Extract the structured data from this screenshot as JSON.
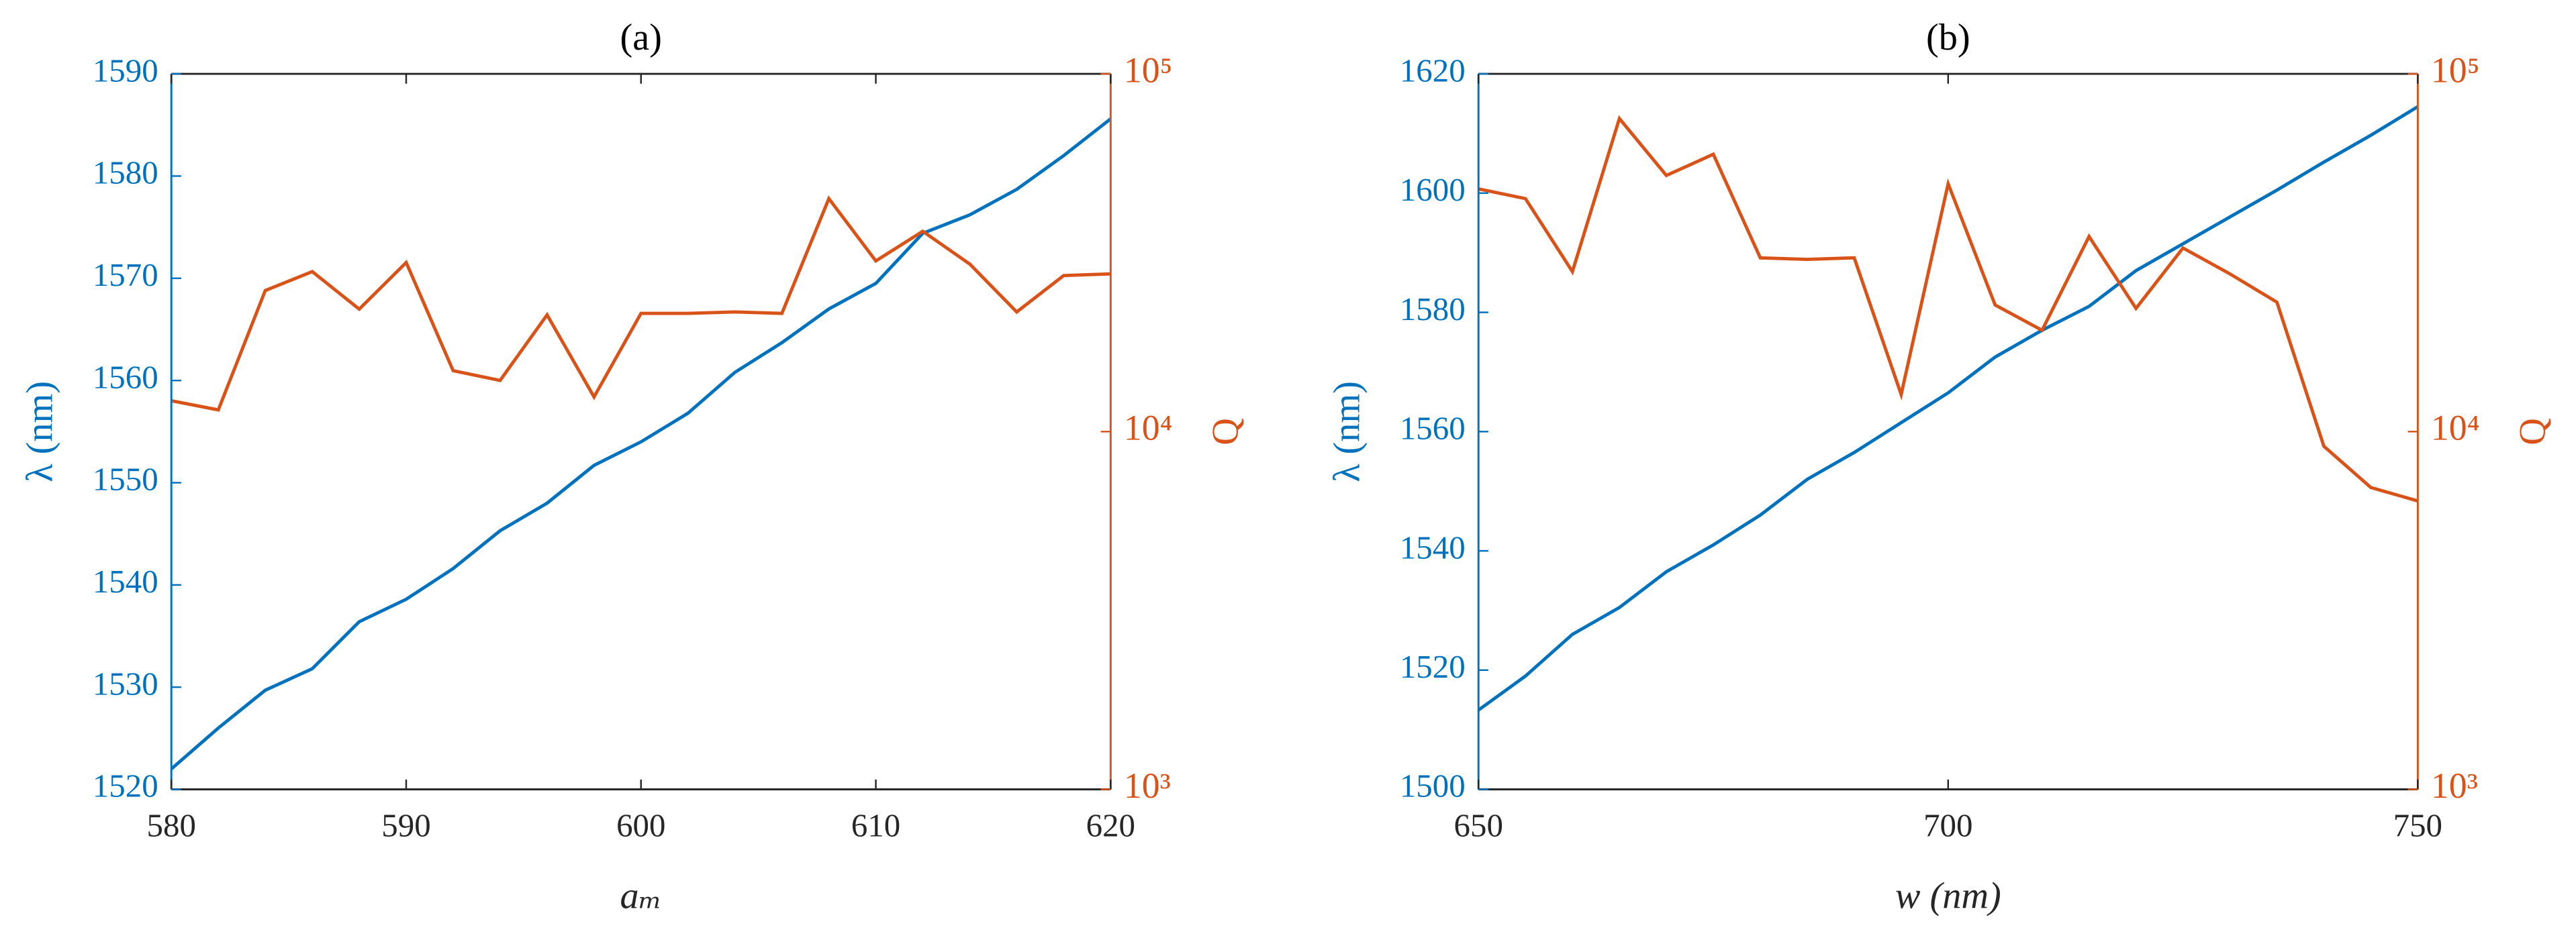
{
  "chart_data": [
    {
      "type": "line",
      "title": "(a)",
      "xlabel": "aₘ",
      "ylabel": "λ (nm)",
      "y2label": "Q",
      "y2scale": "log",
      "x": [
        580,
        582,
        584,
        586,
        588,
        590,
        592,
        594,
        596,
        598,
        600,
        602,
        604,
        606,
        608,
        610,
        612,
        614,
        616,
        618,
        620
      ],
      "series": [
        {
          "color": "#0072bd",
          "values": [
            1522,
            1526,
            1529.7,
            1531.8,
            1536.4,
            1538.6,
            1541.6,
            1545.3,
            1548,
            1551.7,
            1554,
            1556.8,
            1560.8,
            1563.7,
            1567,
            1569.5,
            1574.4,
            1576.2,
            1578.7,
            1582,
            1585.6
          ]
        },
        {
          "color": "#d95319",
          "axis": "y2",
          "values": [
            12200,
            11500,
            24800,
            28000,
            22000,
            29700,
            14800,
            13900,
            21200,
            12500,
            21400,
            21400,
            21600,
            21400,
            44800,
            30000,
            36300,
            29400,
            21600,
            27300,
            27600
          ]
        }
      ],
      "xlim": [
        580,
        620
      ],
      "xticks": [
        580,
        590,
        600,
        610,
        620
      ],
      "ylim": [
        1520,
        1590
      ],
      "yticks": [
        1520,
        1530,
        1540,
        1550,
        1560,
        1570,
        1580,
        1590
      ],
      "y2lim": [
        1000,
        100000
      ],
      "y2ticks": [
        {
          "value": 1000,
          "label": "10³"
        },
        {
          "value": 10000,
          "label": "10⁴"
        },
        {
          "value": 100000,
          "label": "10⁵"
        }
      ]
    },
    {
      "type": "line",
      "title": "(b)",
      "xlabel": "w (nm)",
      "ylabel": "λ (nm)",
      "y2label": "Q",
      "y2scale": "log",
      "x": [
        650,
        655,
        660,
        665,
        670,
        675,
        680,
        685,
        690,
        695,
        700,
        705,
        710,
        715,
        720,
        725,
        730,
        735,
        740,
        745,
        750
      ],
      "series": [
        {
          "color": "#0072bd",
          "values": [
            1513.3,
            1519,
            1526,
            1530.5,
            1536.5,
            1541,
            1546,
            1552,
            1556.5,
            1561.5,
            1566.5,
            1572.5,
            1577,
            1581,
            1587,
            1591.5,
            1596,
            1600.5,
            1605.2,
            1609.7,
            1614.5
          ]
        },
        {
          "color": "#d95319",
          "axis": "y2",
          "values": [
            47700,
            44800,
            28000,
            75000,
            52000,
            59600,
            30600,
            30300,
            30600,
            12700,
            49300,
            22600,
            19200,
            35100,
            22100,
            32600,
            27600,
            23000,
            9100,
            6980,
            6400
          ]
        }
      ],
      "xlim": [
        650,
        750
      ],
      "xticks": [
        650,
        700,
        750
      ],
      "ylim": [
        1500,
        1620
      ],
      "yticks": [
        1500,
        1520,
        1540,
        1560,
        1580,
        1600,
        1620
      ],
      "y2lim": [
        1000,
        100000
      ],
      "y2ticks": [
        {
          "value": 1000,
          "label": "10³"
        },
        {
          "value": 10000,
          "label": "10⁴"
        },
        {
          "value": 100000,
          "label": "10⁵"
        }
      ]
    }
  ]
}
